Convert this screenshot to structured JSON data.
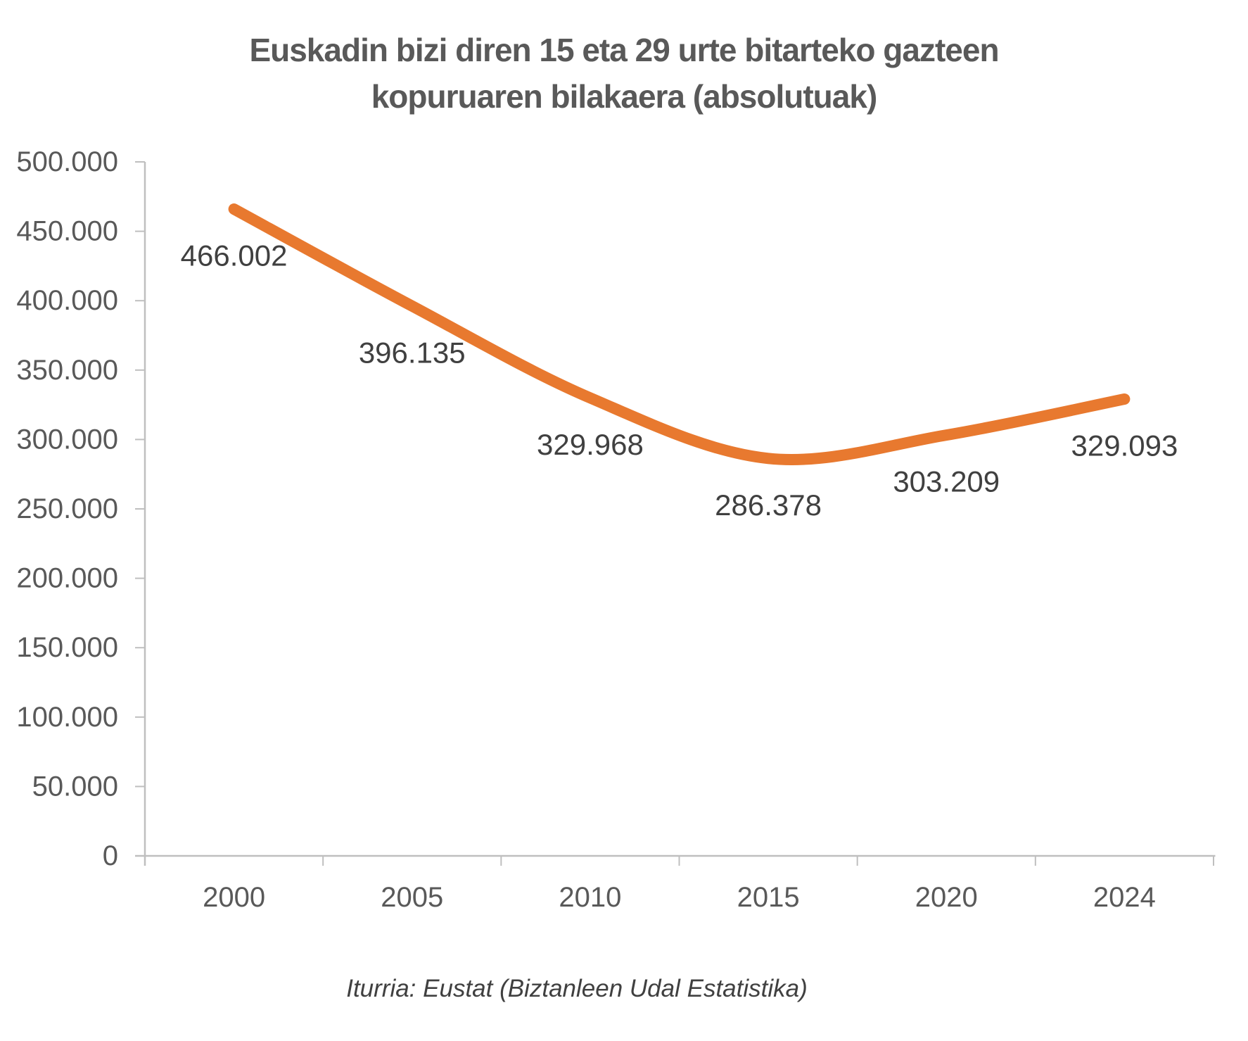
{
  "chart_data": {
    "type": "line",
    "title": "Euskadin bizi diren 15 eta 29 urte bitarteko gazteen kopuruaren bilakaera (absolutuak)",
    "title_lines": {
      "0": "Euskadin bizi diren 15 eta 29 urte bitarteko gazteen",
      "1": "kopuruaren bilakaera (absolutuak)"
    },
    "categories": [
      "2000",
      "2005",
      "2010",
      "2015",
      "2020",
      "2024"
    ],
    "values": [
      466002,
      396135,
      329968,
      286378,
      303209,
      329093
    ],
    "data_labels": [
      "466.002",
      "396.135",
      "329.968",
      "286.378",
      "303.209",
      "329.093"
    ],
    "y_tick_labels": [
      "500.000",
      "450.000",
      "400.000",
      "350.000",
      "300.000",
      "250.000",
      "200.000",
      "150.000",
      "100.000",
      "50.000",
      "0"
    ],
    "ylim": [
      0,
      500000
    ],
    "y_tick_step": 50000,
    "xlabel": "",
    "ylabel": "",
    "grid": false,
    "legend": false,
    "smoothed": true,
    "line_color": "#E8792F",
    "axis_color": "#BFBFBF",
    "axis_text_color": "#595959",
    "data_label_color": "#404040",
    "title_color": "#595959",
    "source_note": "Iturria: Eustat (Biztanleen Udal Estatistika)"
  }
}
